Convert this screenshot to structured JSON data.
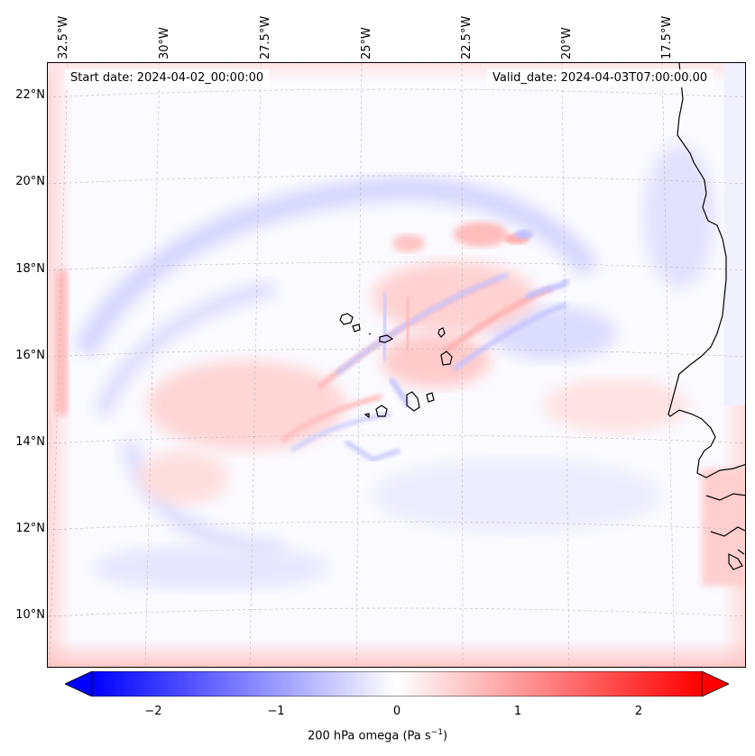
{
  "map": {
    "start_date": "Start date: 2024-04-02_00:00:00",
    "valid_date": "Valid_date: 2024-04-03T07:00:00.00",
    "lon_labels": [
      "32.5°W",
      "30°W",
      "27.5°W",
      "25°W",
      "22.5°W",
      "20°W",
      "17.5°W"
    ],
    "lat_labels": [
      "22°N",
      "20°N",
      "18°N",
      "16°N",
      "14°N",
      "12°N",
      "10°N"
    ]
  },
  "colorbar": {
    "ticks": [
      "−2",
      "−1",
      "0",
      "1",
      "2"
    ],
    "label": "200 hPa omega (Pa s",
    "label_sup": "−1",
    "label_end": ")",
    "min_color": "#0000ff",
    "mid_color": "#ffffff",
    "max_color": "#ff0000"
  },
  "colors": {
    "coast": "#000000",
    "grid": "#bbbbbb",
    "neg_light": "#dcdcff",
    "pos_light": "#ffdcdc"
  }
}
